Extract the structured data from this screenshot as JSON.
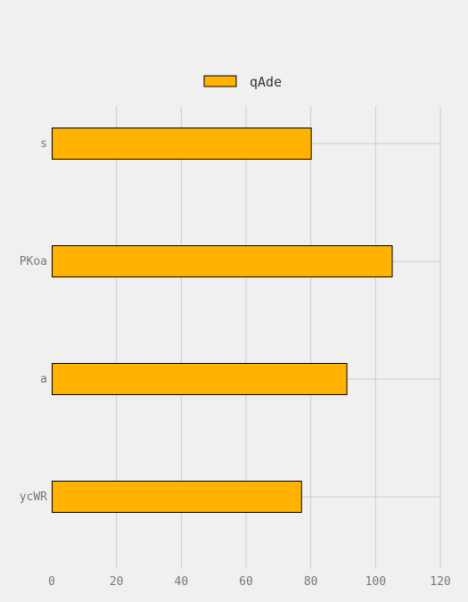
{
  "chart_data": {
    "type": "bar",
    "orientation": "horizontal",
    "categories": [
      "s",
      "PKoa",
      "a",
      "ycWR"
    ],
    "series": [
      {
        "name": "qAde",
        "values": [
          80,
          105,
          91,
          77
        ]
      }
    ],
    "xlim": [
      0,
      120
    ],
    "x_ticks": [
      "0",
      "20",
      "40",
      "60",
      "80",
      "100",
      "120"
    ],
    "grid": true,
    "legend_position": "top-center",
    "bar_color": "#ffb300",
    "bar_edge_color": "#000000",
    "grid_color": "#cccccc",
    "background_color": "#f0f0f0"
  }
}
